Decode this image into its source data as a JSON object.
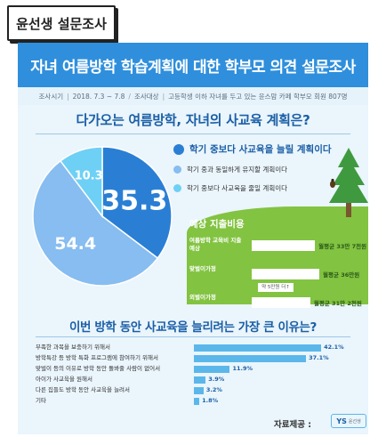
{
  "header": {
    "tag": "윤선생 설문조사",
    "title": "자녀 여름방학 학습계획에 대한 학부모 의견 설문조사",
    "subtitle": {
      "period_label": "조사시기",
      "period": "2018. 7.3 ~ 7.8",
      "target_label": "조사대상",
      "target": "고등학생 이하 자녀를 두고 있는 윤스맘 카페 학부모 회원 807명"
    }
  },
  "question1": "다가오는 여름방학, 자녀의 사교육 계획은?",
  "question2": "이번 방학 동안 사교육을 늘리려는 가장 큰 이유는?",
  "spending": {
    "title": "예상 지출비용",
    "rows": [
      {
        "label": "여름방학 교육비 지출 예상",
        "value_text": "월평균 33만 7천원"
      },
      {
        "label": "맞벌이가정",
        "value_text": "월평균 36만원"
      },
      {
        "label": "외벌이가정",
        "value_text": "월평균 31만 2천원"
      }
    ],
    "diff_text": "약 5만원 더↑"
  },
  "source": {
    "label": "자료제공 :",
    "logo_mark": "YS",
    "logo_name": "윤선생"
  },
  "colors": {
    "blue_dark": "#2a7fd4",
    "blue_mid": "#87bdf0",
    "blue_light": "#6ed0f5",
    "accent": "#1b5fa6",
    "green": "#82c341"
  },
  "chart_data": [
    {
      "type": "pie",
      "title": "다가오는 여름방학, 자녀의 사교육 계획은?",
      "slices": [
        {
          "label": "학기 중보다 사교육을 늘릴 계획이다",
          "value": 35.3,
          "value_label": "35.3",
          "color": "#2a7fd4"
        },
        {
          "label": "학기 중과 동일하게 유지할 계획이다",
          "value": 54.4,
          "value_label": "54.4",
          "color": "#87bdf0"
        },
        {
          "label": "학기 중보다 사교육을 줄일 계획이다",
          "value": 10.3,
          "value_label": "10.3",
          "color": "#6ed0f5"
        }
      ]
    },
    {
      "type": "bar",
      "title": "이번 방학 동안 사교육을 늘리려는 가장 큰 이유는?",
      "categories": [
        "부족한 과목을 보충하기 위해서",
        "방학특강 등 방학 특화 프로그램에 참여하기 위해서",
        "맞벌이 등의 이유로 방학 동안 돌봐줄 사람이 없어서",
        "아이가 사교육을 원해서",
        "다른 집들도 방학 동안 사교육을 늘려서",
        "기타"
      ],
      "values": [
        42.1,
        37.1,
        11.9,
        3.9,
        3.2,
        1.8
      ],
      "value_labels": [
        "42.1%",
        "37.1%",
        "11.9%",
        "3.9%",
        "3.2%",
        "1.8%"
      ],
      "xlim": [
        0,
        50
      ]
    },
    {
      "type": "bar",
      "title": "예상 지출비용",
      "categories": [
        "여름방학 교육비 지출 예상",
        "맞벌이가정",
        "외벌이가정"
      ],
      "values": [
        33.7,
        36,
        31.2
      ],
      "unit": "만원"
    }
  ]
}
